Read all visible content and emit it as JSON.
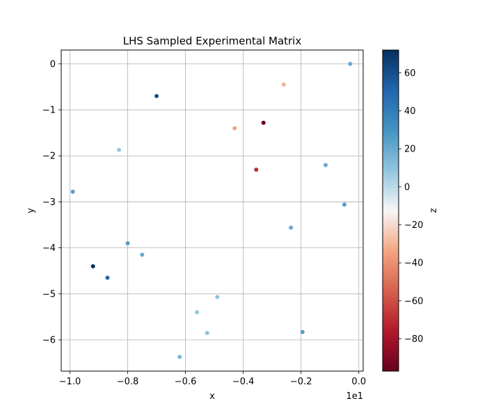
{
  "chart_data": {
    "type": "scatter",
    "title": "LHS Sampled Experimental Matrix",
    "xlabel": "x",
    "ylabel": "y",
    "x_offset_label": "1e1",
    "colorbar_label": "z",
    "xlim": [
      -1.03,
      0.015
    ],
    "ylim": [
      -6.68,
      0.3
    ],
    "clim": [
      -97,
      72
    ],
    "colormap": "RdBu",
    "grid": true,
    "x_ticks": [
      -1.0,
      -0.8,
      -0.6,
      -0.4,
      -0.2,
      0.0
    ],
    "x_tick_labels": [
      "−1.0",
      "−0.8",
      "−0.6",
      "−0.4",
      "−0.2",
      "0.0"
    ],
    "y_ticks": [
      0,
      -1,
      -2,
      -3,
      -4,
      -5,
      -6
    ],
    "y_tick_labels": [
      "0",
      "−1",
      "−2",
      "−3",
      "−4",
      "−5",
      "−6"
    ],
    "colorbar_ticks": [
      60,
      40,
      20,
      0,
      -20,
      -40,
      -60,
      -80
    ],
    "colorbar_tick_labels": [
      "60",
      "40",
      "20",
      "0",
      "−20",
      "−40",
      "−60",
      "−80"
    ],
    "points": [
      {
        "x": -0.03,
        "y": 0.0,
        "z": 20
      },
      {
        "x": -0.26,
        "y": -0.45,
        "z": -30
      },
      {
        "x": -0.7,
        "y": -0.7,
        "z": 60
      },
      {
        "x": -0.33,
        "y": -1.28,
        "z": -97
      },
      {
        "x": -0.43,
        "y": -1.4,
        "z": -35
      },
      {
        "x": -0.83,
        "y": -1.87,
        "z": 8
      },
      {
        "x": -0.115,
        "y": -2.2,
        "z": 20
      },
      {
        "x": -0.355,
        "y": -2.3,
        "z": -70
      },
      {
        "x": -0.99,
        "y": -2.78,
        "z": 25
      },
      {
        "x": -0.05,
        "y": -3.06,
        "z": 25
      },
      {
        "x": -0.235,
        "y": -3.56,
        "z": 20
      },
      {
        "x": -0.8,
        "y": -3.9,
        "z": 25
      },
      {
        "x": -0.75,
        "y": -4.15,
        "z": 20
      },
      {
        "x": -0.92,
        "y": -4.4,
        "z": 72
      },
      {
        "x": -0.87,
        "y": -4.65,
        "z": 50
      },
      {
        "x": -0.49,
        "y": -5.07,
        "z": 10
      },
      {
        "x": -0.56,
        "y": -5.4,
        "z": 8
      },
      {
        "x": -0.525,
        "y": -5.85,
        "z": 10
      },
      {
        "x": -0.195,
        "y": -5.83,
        "z": 25
      },
      {
        "x": -0.62,
        "y": -6.37,
        "z": 15
      }
    ]
  }
}
